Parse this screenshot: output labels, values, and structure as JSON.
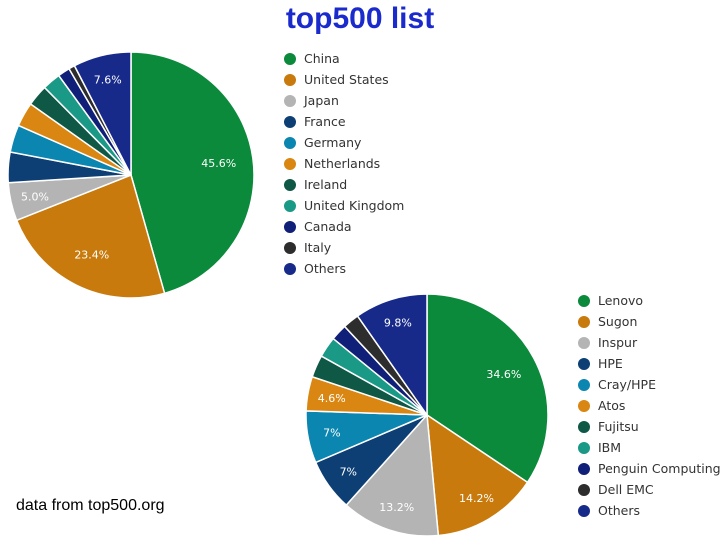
{
  "title": "top500 list",
  "footer": "data from top500.org",
  "chart_data": [
    {
      "type": "pie",
      "categories": [
        "China",
        "United States",
        "Japan",
        "France",
        "Germany",
        "Netherlands",
        "Ireland",
        "United Kingdom",
        "Canada",
        "Italy",
        "Others"
      ],
      "values": [
        45.6,
        23.4,
        5.0,
        4.0,
        3.6,
        3.2,
        2.8,
        2.4,
        1.6,
        0.8,
        7.6
      ],
      "colors": [
        "#0b8a3b",
        "#c87a0c",
        "#b4b4b4",
        "#0d3f74",
        "#0a86b0",
        "#d98712",
        "#0f5846",
        "#1a9a86",
        "#101f78",
        "#2d2d2d",
        "#172a8a"
      ],
      "data_labels": [
        "45.6%",
        "23.4%",
        "5.0%",
        "",
        "",
        "",
        "",
        "",
        "",
        "",
        "7.6%"
      ],
      "legend_position": "right"
    },
    {
      "type": "pie",
      "categories": [
        "Lenovo",
        "Sugon",
        "Inspur",
        "HPE",
        "Cray/HPE",
        "Atos",
        "Fujitsu",
        "IBM",
        "Penguin Computing",
        "Dell EMC",
        "Others"
      ],
      "values": [
        34.6,
        14.2,
        13.2,
        7,
        7,
        4.6,
        3,
        2.8,
        2.2,
        2.2,
        9.8
      ],
      "colors": [
        "#0b8a3b",
        "#c87a0c",
        "#b4b4b4",
        "#0d3f74",
        "#0a86b0",
        "#d98712",
        "#0f5846",
        "#1a9a86",
        "#101f78",
        "#2d2d2d",
        "#172a8a"
      ],
      "data_labels": [
        "34.6%",
        "14.2%",
        "13.2%",
        "7%",
        "7%",
        "4.6%",
        "",
        "",
        "",
        "",
        "9.8%"
      ],
      "legend_position": "right"
    }
  ]
}
